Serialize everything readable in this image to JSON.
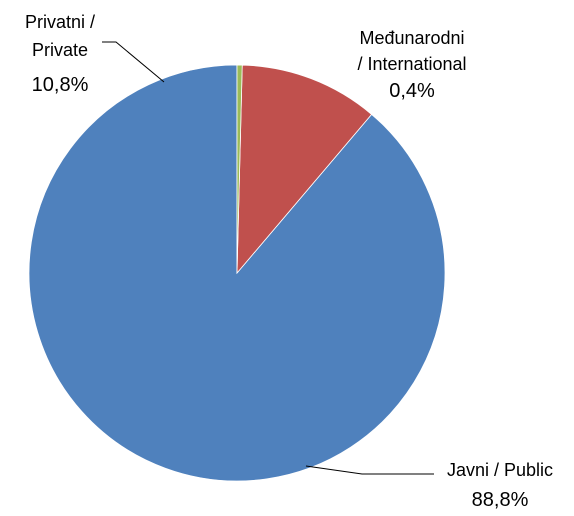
{
  "chart_data": {
    "type": "pie",
    "slices": [
      {
        "label": "Javni / Public",
        "value": 88.8,
        "value_label": "88,8%",
        "color": "#4f81bd"
      },
      {
        "label": "Privatni / Private",
        "value": 10.8,
        "value_label": "10,8%",
        "color": "#c0504d"
      },
      {
        "label": "Međunarodni / International",
        "value": 0.4,
        "value_label": "0,4%",
        "color": "#9bbb59"
      }
    ],
    "label_lines": {
      "public": [
        "Javni / Public"
      ],
      "private": [
        "Privatni /",
        "Private"
      ],
      "international": [
        "Međunarodni",
        "/ International"
      ]
    },
    "start_angle": "12 o'clock",
    "direction": "counter-clockwise from top: Public, then Private, then International"
  }
}
